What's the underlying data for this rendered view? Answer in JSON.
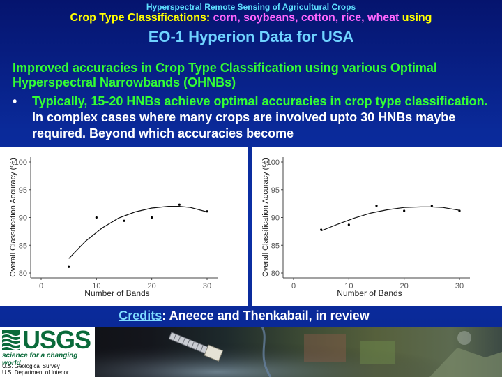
{
  "header": {
    "line1": "Hyperspectral Remote Sensing of Agricultural Crops",
    "line2_prefix": "Crop Type Classifications: ",
    "line2_crops": "corn, soybeans, cotton, rice, wheat",
    "line2_suffix": " using",
    "line3": "EO-1 Hyperion Data for USA"
  },
  "lead_text": "Improved accuracies in Crop Type Classification using various Optimal Hyperspectral Narrowbands (OHNBs)",
  "bullet": {
    "marker": "•",
    "green_text": "Typically, 15-20 HNBs achieve optimal accuracies in crop type classification.",
    "white_text": " In complex cases where many crops are involved upto 30 HNBs maybe required. Beyond which accuracies become"
  },
  "credits": {
    "label": "Credits",
    "text": ": Aneece and Thenkabail, in review"
  },
  "footer": {
    "logo_text": "USGS",
    "tagline": "science for a changing world",
    "org_line1": "U.S. Geological Survey",
    "org_line2": "U.S. Department of Interior"
  },
  "colors": {
    "background": "#0a2a9a",
    "header_cyan": "#5ee0ff",
    "yellow": "#ffff00",
    "magenta": "#ff66ff",
    "green": "#33ff33",
    "usgs_green": "#0a6a3a"
  },
  "chart_data": [
    {
      "type": "scatter",
      "xlabel": "Number of Bands",
      "ylabel": "Overall Classification Accuracy (%)",
      "xlim": [
        0,
        30
      ],
      "ylim": [
        80,
        100
      ],
      "x_ticks": [
        0,
        10,
        20,
        30
      ],
      "y_ticks": [
        80,
        85,
        90,
        95,
        100
      ],
      "grid": false,
      "series": [
        {
          "x": [
            5,
            10,
            15,
            20,
            25,
            30
          ],
          "y": [
            81.1,
            90.0,
            89.4,
            90.0,
            92.3,
            91.1
          ]
        }
      ],
      "trend": {
        "x": [
          5,
          8,
          11,
          14,
          17,
          20,
          23,
          25,
          27,
          30
        ],
        "y": [
          82.6,
          85.7,
          88.1,
          89.9,
          91.0,
          91.7,
          92.0,
          92.0,
          91.8,
          91.0
        ]
      }
    },
    {
      "type": "scatter",
      "xlabel": "Number of Bands",
      "ylabel": "Overall Classification Accuracy (%)",
      "xlim": [
        0,
        30
      ],
      "ylim": [
        80,
        100
      ],
      "x_ticks": [
        0,
        10,
        20,
        30
      ],
      "y_ticks": [
        80,
        85,
        90,
        95,
        100
      ],
      "grid": false,
      "series": [
        {
          "x": [
            5,
            10,
            15,
            20,
            25,
            30
          ],
          "y": [
            87.8,
            88.7,
            92.1,
            91.2,
            92.1,
            91.2
          ]
        }
      ],
      "trend": {
        "x": [
          5,
          8,
          11,
          14,
          17,
          20,
          23,
          25,
          27,
          30
        ],
        "y": [
          87.6,
          88.8,
          89.9,
          90.8,
          91.4,
          91.8,
          91.9,
          91.9,
          91.8,
          91.3
        ]
      }
    }
  ]
}
